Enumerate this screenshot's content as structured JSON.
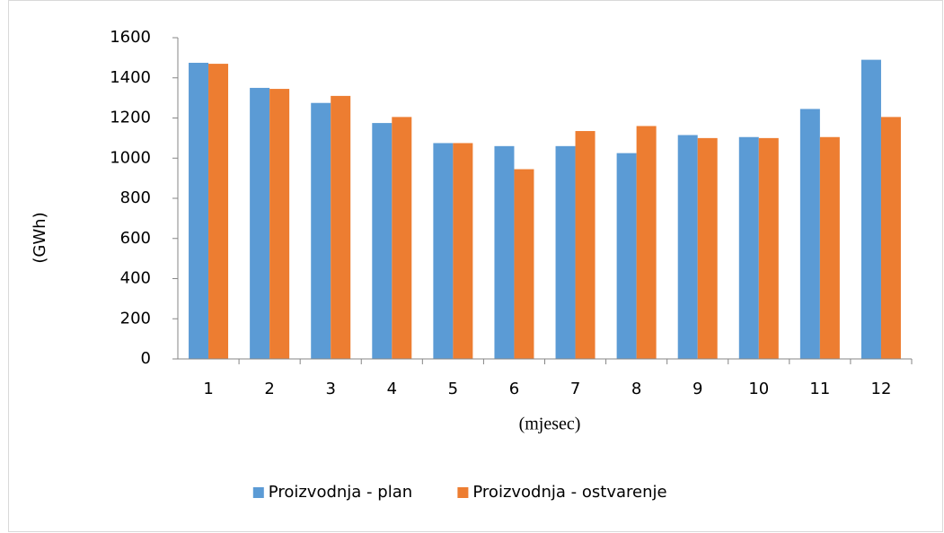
{
  "chart_data": {
    "type": "bar",
    "x_label": "(mjesec)",
    "y_label": "(GWh)",
    "categories": [
      "1",
      "2",
      "3",
      "4",
      "5",
      "6",
      "7",
      "8",
      "9",
      "10",
      "11",
      "12"
    ],
    "series": [
      {
        "name": "Proizvodnja - plan",
        "color": "#5b9bd5",
        "values": [
          1475,
          1350,
          1275,
          1175,
          1075,
          1060,
          1060,
          1025,
          1115,
          1105,
          1245,
          1490
        ]
      },
      {
        "name": "Proizvodnja - ostvarenje",
        "color": "#ed7d31",
        "values": [
          1470,
          1345,
          1310,
          1205,
          1075,
          945,
          1135,
          1160,
          1100,
          1100,
          1105,
          1205
        ]
      }
    ],
    "ylim": [
      0,
      1600
    ],
    "yticks": [
      0,
      200,
      400,
      600,
      800,
      1000,
      1200,
      1400,
      1600
    ],
    "grid": false,
    "legend": "bottom"
  }
}
